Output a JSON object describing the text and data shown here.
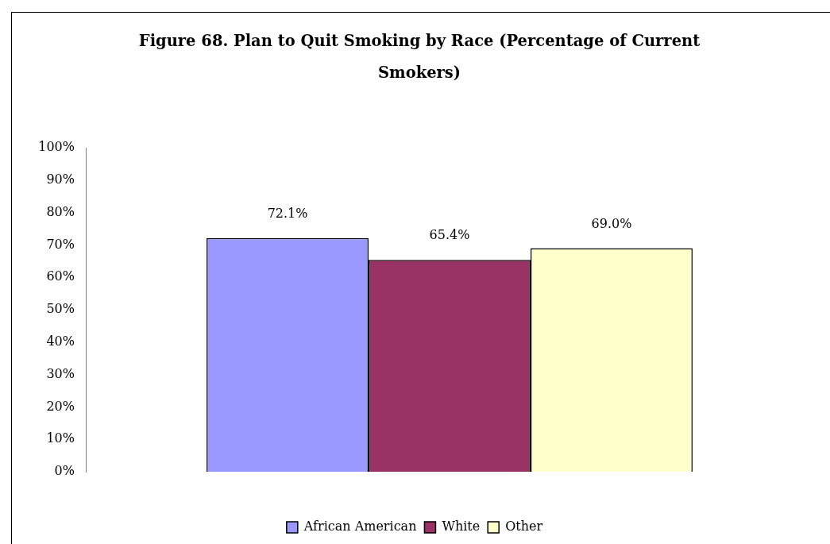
{
  "chart_data": {
    "type": "bar",
    "title": "Figure 68. Plan to Quit Smoking by Race (Percentage of Current Smokers)",
    "categories": [
      null
    ],
    "series": [
      {
        "name": "African American",
        "color": "#9999ff",
        "values": [
          72.1
        ],
        "value_labels": [
          "72.1%"
        ]
      },
      {
        "name": "White",
        "color": "#993366",
        "values": [
          65.4
        ],
        "value_labels": [
          "65.4%"
        ]
      },
      {
        "name": "Other",
        "color": "#ffffcc",
        "values": [
          69.0
        ],
        "value_labels": [
          "69.0%"
        ]
      }
    ],
    "ylim": [
      0,
      100
    ],
    "yticks": [
      {
        "value": 0,
        "label": "0%"
      },
      {
        "value": 10,
        "label": "10%"
      },
      {
        "value": 20,
        "label": "20%"
      },
      {
        "value": 30,
        "label": "30%"
      },
      {
        "value": 40,
        "label": "40%"
      },
      {
        "value": 50,
        "label": "50%"
      },
      {
        "value": 60,
        "label": "60%"
      },
      {
        "value": 70,
        "label": "70%"
      },
      {
        "value": 80,
        "label": "80%"
      },
      {
        "value": 90,
        "label": "90%"
      },
      {
        "value": 100,
        "label": "100%"
      }
    ],
    "legend": "bottom"
  }
}
